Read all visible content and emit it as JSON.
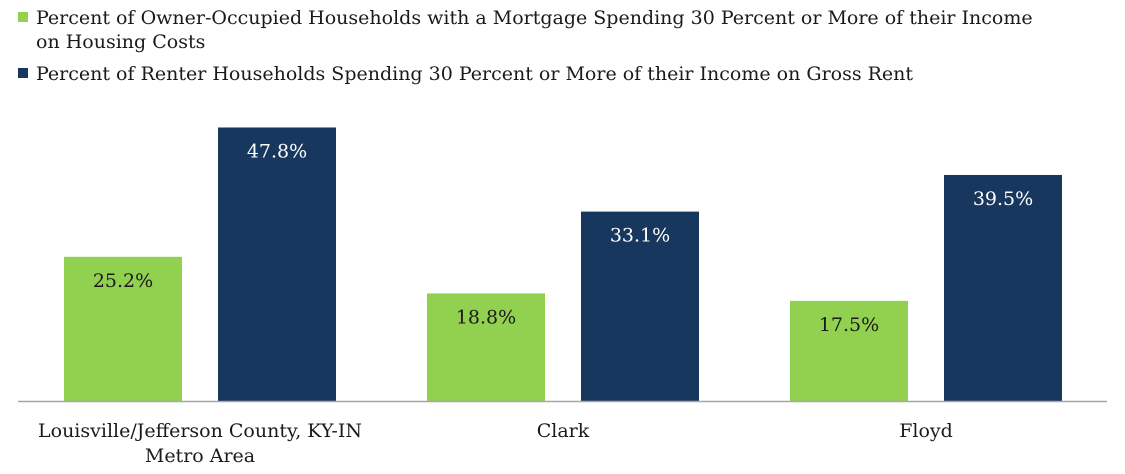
{
  "chart_data": {
    "type": "bar",
    "categories": [
      "Louisville/Jefferson County, KY-IN Metro Area",
      "Clark",
      "Floyd"
    ],
    "category_lines": [
      [
        "Louisville/Jefferson County, KY-IN",
        "Metro Area"
      ],
      [
        "Clark"
      ],
      [
        "Floyd"
      ]
    ],
    "series": [
      {
        "name": "Percent of Owner-Occupied Households with a Mortgage Spending 30 Percent or More of their Income on Housing Costs",
        "legend_lines": [
          "Percent of Owner-Occupied Households with a Mortgage Spending 30 Percent or More of their Income",
          "on Housing Costs"
        ],
        "values": [
          25.2,
          18.8,
          17.5
        ],
        "labels": [
          "25.2%",
          "18.8%",
          "17.5%"
        ],
        "color": "#92d050",
        "label_color": "#1a1a1a"
      },
      {
        "name": "Percent of Renter Households Spending 30 Percent or More of their Income on Gross Rent",
        "legend_lines": [
          "Percent of Renter Households Spending 30 Percent or More of their Income on Gross Rent"
        ],
        "values": [
          47.8,
          33.1,
          39.5
        ],
        "labels": [
          "47.8%",
          "33.1%",
          "39.5%"
        ],
        "color": "#17375e",
        "label_color": "#ffffff"
      }
    ],
    "ylim": [
      0,
      54
    ],
    "legend_position": "top-left",
    "grid": false,
    "axis_color": "#a6a6a6",
    "title": "",
    "xlabel": "",
    "ylabel": ""
  }
}
